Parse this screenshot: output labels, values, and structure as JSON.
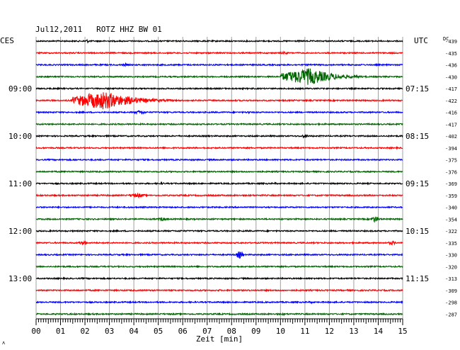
{
  "chart_data": {
    "type": "line",
    "title": "Jul12,2011   ROTZ HHZ BW 01",
    "left_label": "CES",
    "right_label": "UTC",
    "dc_label": "DC",
    "xlabel": "Zeit [min]",
    "xlim": [
      0,
      15
    ],
    "x_ticks": [
      "00",
      "01",
      "02",
      "03",
      "04",
      "05",
      "06",
      "07",
      "08",
      "09",
      "10",
      "11",
      "12",
      "13",
      "14",
      "15"
    ],
    "grid": true,
    "trace_colors": [
      "#000000",
      "#ff0000",
      "#0000ff",
      "#006400"
    ],
    "left_hour_labels": [
      {
        "trace": 4,
        "text": "09:00"
      },
      {
        "trace": 8,
        "text": "10:00"
      },
      {
        "trace": 12,
        "text": "11:00"
      },
      {
        "trace": 16,
        "text": "12:00"
      },
      {
        "trace": 20,
        "text": "13:00"
      }
    ],
    "right_hour_labels": [
      {
        "trace": 4,
        "text": "07:15"
      },
      {
        "trace": 8,
        "text": "08:15"
      },
      {
        "trace": 12,
        "text": "09:15"
      },
      {
        "trace": 16,
        "text": "10:15"
      },
      {
        "trace": 20,
        "text": "11:15"
      }
    ],
    "dc_offsets": [
      -439,
      -435,
      -436,
      -430,
      -417,
      -422,
      -416,
      -417,
      -402,
      -394,
      -375,
      -376,
      -369,
      -359,
      -340,
      -354,
      -322,
      -335,
      -330,
      -320,
      -313,
      -309,
      -298,
      -287
    ],
    "events": [
      {
        "trace": 0,
        "start_min": 2.0,
        "peak_min": 2.1,
        "end_min": 2.4,
        "amp": 2.5
      },
      {
        "trace": 1,
        "start_min": 10.0,
        "peak_min": 10.2,
        "end_min": 10.5,
        "amp": 2.5
      },
      {
        "trace": 2,
        "start_min": 3.5,
        "peak_min": 3.7,
        "end_min": 3.9,
        "amp": 2.2
      },
      {
        "trace": 3,
        "start_min": 10.0,
        "peak_min": 11.2,
        "end_min": 14.0,
        "amp": 12
      },
      {
        "trace": 5,
        "start_min": 1.5,
        "peak_min": 2.8,
        "end_min": 6.2,
        "amp": 13
      },
      {
        "trace": 6,
        "start_min": 4.0,
        "peak_min": 4.3,
        "end_min": 4.9,
        "amp": 3
      },
      {
        "trace": 6,
        "start_min": 8.6,
        "peak_min": 8.7,
        "end_min": 8.9,
        "amp": 2
      },
      {
        "trace": 8,
        "start_min": 10.8,
        "peak_min": 11.0,
        "end_min": 11.5,
        "amp": 2.5
      },
      {
        "trace": 10,
        "start_min": 4.2,
        "peak_min": 4.4,
        "end_min": 4.7,
        "amp": 1.6
      },
      {
        "trace": 11,
        "start_min": 1.2,
        "peak_min": 1.35,
        "end_min": 1.6,
        "amp": 1.6
      },
      {
        "trace": 12,
        "start_min": 5.0,
        "peak_min": 5.2,
        "end_min": 5.4,
        "amp": 1.8
      },
      {
        "trace": 12,
        "start_min": 9.7,
        "peak_min": 9.8,
        "end_min": 10.0,
        "amp": 1.8
      },
      {
        "trace": 13,
        "start_min": 3.8,
        "peak_min": 4.2,
        "end_min": 5.0,
        "amp": 3.2
      },
      {
        "trace": 14,
        "start_min": 3.6,
        "peak_min": 3.8,
        "end_min": 4.1,
        "amp": 1.5
      },
      {
        "trace": 15,
        "start_min": 5.0,
        "peak_min": 5.2,
        "end_min": 5.7,
        "amp": 3
      },
      {
        "trace": 15,
        "start_min": 13.7,
        "peak_min": 13.9,
        "end_min": 14.3,
        "amp": 5
      },
      {
        "trace": 16,
        "start_min": 5.8,
        "peak_min": 5.9,
        "end_min": 6.1,
        "amp": 1.5
      },
      {
        "trace": 17,
        "start_min": 1.7,
        "peak_min": 2.0,
        "end_min": 2.4,
        "amp": 3
      },
      {
        "trace": 17,
        "start_min": 14.4,
        "peak_min": 14.6,
        "end_min": 15.0,
        "amp": 3
      },
      {
        "trace": 18,
        "start_min": 8.2,
        "peak_min": 8.4,
        "end_min": 8.6,
        "amp": 7
      },
      {
        "trace": 21,
        "start_min": 7.4,
        "peak_min": 7.5,
        "end_min": 7.7,
        "amp": 1.5
      },
      {
        "trace": 22,
        "start_min": 11.0,
        "peak_min": 11.3,
        "end_min": 11.7,
        "amp": 1.6
      },
      {
        "trace": 23,
        "start_min": 10.0,
        "peak_min": 10.1,
        "end_min": 10.4,
        "amp": 2.0
      }
    ]
  }
}
